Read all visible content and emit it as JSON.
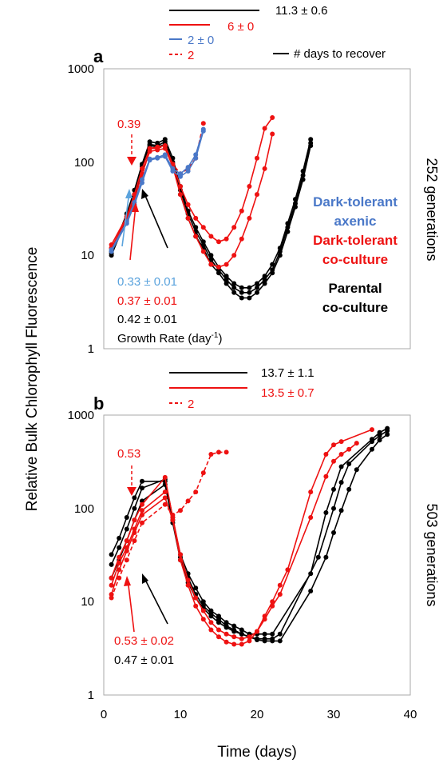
{
  "figure": {
    "ylabel": "Relative Bulk Chlorophyll Fluorescence",
    "xlabel": "Time (days)",
    "x_ticks": [
      "0",
      "10",
      "20",
      "30",
      "40"
    ],
    "y_ticks": [
      "1",
      "10",
      "100",
      "1000"
    ]
  },
  "colors": {
    "black": "#000000",
    "red": "#ee1111",
    "blue": "#4a78c8",
    "lightblue": "#5ba3dd"
  },
  "chart_data": [
    {
      "type": "line",
      "panel_label": "a",
      "side_label": "252 generations",
      "xlim": [
        0,
        40
      ],
      "ylim": [
        1,
        1000
      ],
      "yscale": "log",
      "recover_legend": [
        {
          "text": "11.3 ± 0.6",
          "color": "black",
          "style": "solid"
        },
        {
          "text": "6 ± 0",
          "color": "red",
          "style": "solid"
        },
        {
          "text": "2 ± 0",
          "color": "blue",
          "style": "solid"
        },
        {
          "text": "2",
          "color": "red",
          "style": "dashed"
        }
      ],
      "recover_key": "# days to recover",
      "annotation_rate": "0.39",
      "growth_rates": [
        {
          "text": "0.33 ± 0.01",
          "color": "lightblue"
        },
        {
          "text": "0.37 ± 0.01",
          "color": "red"
        },
        {
          "text": "0.42 ± 0.01",
          "color": "black"
        }
      ],
      "growth_rate_label": "Growth Rate (day",
      "growth_rate_sup": "-1",
      "growth_rate_close": ")",
      "legend": [
        {
          "lines": [
            "Dark-tolerant",
            "axenic"
          ],
          "color": "blue"
        },
        {
          "lines": [
            "Dark-tolerant",
            "co-culture"
          ],
          "color": "red"
        },
        {
          "lines": [
            "Parental",
            "co-culture"
          ],
          "color": "black"
        }
      ],
      "series": [
        {
          "color": "black",
          "dashed": false,
          "x": [
            1,
            3,
            4,
            5,
            6,
            7,
            8,
            9,
            10,
            11,
            12,
            13,
            14,
            15,
            16,
            17,
            18,
            19,
            20,
            21,
            22,
            23,
            24,
            25,
            26,
            27
          ],
          "y": [
            11,
            28,
            50,
            95,
            165,
            160,
            175,
            110,
            55,
            30,
            20,
            14,
            10,
            7.5,
            6,
            5,
            4.5,
            4.5,
            5,
            6,
            8,
            12,
            22,
            40,
            80,
            175
          ]
        },
        {
          "color": "black",
          "dashed": false,
          "x": [
            1,
            3,
            4,
            5,
            6,
            7,
            8,
            9,
            10,
            11,
            12,
            13,
            14,
            15,
            16,
            17,
            18,
            19,
            20,
            21,
            22,
            23,
            24,
            25,
            26,
            27
          ],
          "y": [
            10.5,
            26,
            45,
            90,
            155,
            150,
            165,
            100,
            50,
            28,
            18,
            13,
            9,
            7,
            5.5,
            4.5,
            4,
            4,
            4.5,
            5.5,
            7,
            11,
            20,
            36,
            72,
            160
          ]
        },
        {
          "color": "black",
          "dashed": false,
          "x": [
            1,
            3,
            4,
            5,
            6,
            7,
            8,
            9,
            10,
            11,
            12,
            13,
            14,
            15,
            16,
            17,
            18,
            19,
            20,
            21,
            22,
            23,
            24,
            25,
            26,
            27
          ],
          "y": [
            10,
            25,
            42,
            85,
            150,
            145,
            155,
            95,
            45,
            25,
            16,
            12,
            8,
            6.5,
            5,
            4,
            3.5,
            3.5,
            4,
            5,
            6.5,
            10,
            18,
            33,
            65,
            150
          ]
        },
        {
          "color": "red",
          "dashed": false,
          "x": [
            1,
            3,
            4,
            5,
            6,
            7,
            8,
            9,
            10,
            11,
            12,
            13,
            14,
            15,
            16,
            17,
            18,
            19,
            20,
            21,
            22
          ],
          "y": [
            13,
            26,
            45,
            85,
            140,
            145,
            150,
            95,
            55,
            35,
            25,
            20,
            16,
            14,
            15,
            20,
            30,
            55,
            110,
            230,
            300
          ]
        },
        {
          "color": "red",
          "dashed": false,
          "x": [
            1,
            3,
            4,
            5,
            6,
            7,
            8,
            9,
            10,
            11,
            12,
            13,
            14,
            15,
            16,
            17,
            18,
            19,
            20,
            21,
            22
          ],
          "y": [
            12,
            25,
            40,
            75,
            130,
            135,
            140,
            90,
            45,
            25,
            16,
            11,
            8,
            7.5,
            8,
            10,
            15,
            25,
            45,
            85,
            200
          ]
        },
        {
          "color": "red",
          "dashed": true,
          "x": [
            1,
            3,
            4,
            5,
            6,
            7,
            8,
            9,
            10,
            11,
            12,
            13
          ],
          "y": [
            12,
            24,
            40,
            70,
            140,
            140,
            150,
            95,
            75,
            85,
            110,
            260
          ]
        },
        {
          "color": "blue",
          "dashed": false,
          "x": [
            1,
            3,
            4,
            5,
            6,
            7,
            8,
            9,
            10,
            11,
            12,
            13
          ],
          "y": [
            11,
            22,
            35,
            60,
            105,
            110,
            115,
            80,
            70,
            80,
            110,
            215
          ]
        },
        {
          "color": "blue",
          "dashed": false,
          "x": [
            1,
            3,
            4,
            5,
            6,
            7,
            8,
            9,
            10,
            11,
            12,
            13
          ],
          "y": [
            11.5,
            23,
            37,
            65,
            108,
            112,
            120,
            85,
            75,
            88,
            120,
            225
          ]
        }
      ]
    },
    {
      "type": "line",
      "panel_label": "b",
      "side_label": "503 generations",
      "xlim": [
        0,
        40
      ],
      "ylim": [
        1,
        1000
      ],
      "yscale": "log",
      "recover_legend": [
        {
          "text": "13.7 ± 1.1",
          "color": "black",
          "style": "solid"
        },
        {
          "text": "13.5 ± 0.7",
          "color": "red",
          "style": "solid"
        },
        {
          "text": "2",
          "color": "red",
          "style": "dashed"
        }
      ],
      "annotation_rate": "0.53",
      "growth_rates": [
        {
          "text": "0.53 ± 0.02",
          "color": "red"
        },
        {
          "text": "0.47 ± 0.01",
          "color": "black"
        }
      ],
      "series": [
        {
          "color": "black",
          "dashed": false,
          "x": [
            1,
            2,
            3,
            4,
            5,
            8,
            9,
            10,
            11,
            12,
            13,
            14,
            15,
            16,
            17,
            18,
            19,
            20,
            21,
            22,
            27,
            29,
            30,
            31,
            35,
            36,
            37
          ],
          "y": [
            32,
            48,
            80,
            130,
            195,
            195,
            75,
            32,
            20,
            14,
            10,
            8,
            7,
            6,
            5.5,
            5,
            4.5,
            4.5,
            4.5,
            4.5,
            20,
            90,
            160,
            280,
            550,
            650,
            720
          ]
        },
        {
          "color": "black",
          "dashed": false,
          "x": [
            1,
            2,
            3,
            4,
            5,
            8,
            9,
            10,
            11,
            12,
            13,
            14,
            15,
            16,
            17,
            18,
            19,
            20,
            21,
            22,
            23,
            28,
            30,
            31,
            32,
            35,
            36,
            37
          ],
          "y": [
            25,
            38,
            60,
            100,
            165,
            205,
            80,
            30,
            18,
            12,
            9,
            7.5,
            6.5,
            5.5,
            5,
            4.5,
            4.2,
            4,
            4,
            4,
            4.5,
            30,
            100,
            190,
            300,
            520,
            600,
            680
          ]
        },
        {
          "color": "black",
          "dashed": false,
          "x": [
            1,
            2,
            3,
            4,
            5,
            8,
            9,
            10,
            11,
            12,
            13,
            14,
            15,
            16,
            17,
            18,
            19,
            20,
            21,
            22,
            23,
            27,
            29,
            30,
            31,
            32,
            33,
            35,
            36,
            37
          ],
          "y": [
            18,
            28,
            45,
            75,
            120,
            180,
            70,
            28,
            16,
            11,
            8.5,
            7,
            6,
            5.3,
            4.8,
            4.5,
            4.2,
            3.9,
            3.8,
            3.8,
            3.8,
            13,
            30,
            55,
            95,
            160,
            260,
            430,
            540,
            620
          ]
        },
        {
          "color": "red",
          "dashed": false,
          "x": [
            1,
            2,
            3,
            4,
            5,
            8,
            9,
            10,
            11,
            12,
            13,
            14,
            15,
            16,
            17,
            18,
            19,
            20,
            21,
            22,
            23,
            24,
            27,
            29,
            30,
            31,
            35
          ],
          "y": [
            18,
            30,
            45,
            75,
            110,
            215,
            80,
            32,
            17,
            11,
            8,
            6,
            5,
            4.5,
            4.2,
            4,
            4.2,
            4.8,
            7,
            10,
            15,
            22,
            150,
            380,
            480,
            520,
            700
          ]
        },
        {
          "color": "red",
          "dashed": false,
          "x": [
            1,
            2,
            3,
            4,
            5,
            8,
            9,
            10,
            11,
            12,
            13,
            14,
            15,
            16,
            17,
            18,
            19,
            20,
            21,
            22,
            23,
            27,
            29,
            30,
            31,
            32,
            33
          ],
          "y": [
            12,
            22,
            35,
            55,
            85,
            130,
            75,
            28,
            15,
            9,
            6.5,
            5,
            4.2,
            3.7,
            3.5,
            3.5,
            3.8,
            4.8,
            6.5,
            9,
            12,
            80,
            220,
            320,
            380,
            430,
            500
          ]
        },
        {
          "color": "red",
          "dashed": false,
          "x": [
            1,
            2,
            3,
            4,
            5,
            8
          ],
          "y": [
            15,
            26,
            38,
            60,
            95,
            150
          ]
        },
        {
          "color": "red",
          "dashed": true,
          "x": [
            1,
            2,
            3,
            4,
            5,
            8,
            9,
            10,
            11,
            12,
            13,
            14,
            15,
            16
          ],
          "y": [
            11,
            18,
            28,
            45,
            70,
            110,
            85,
            95,
            120,
            150,
            240,
            380,
            400,
            400
          ]
        }
      ]
    }
  ]
}
